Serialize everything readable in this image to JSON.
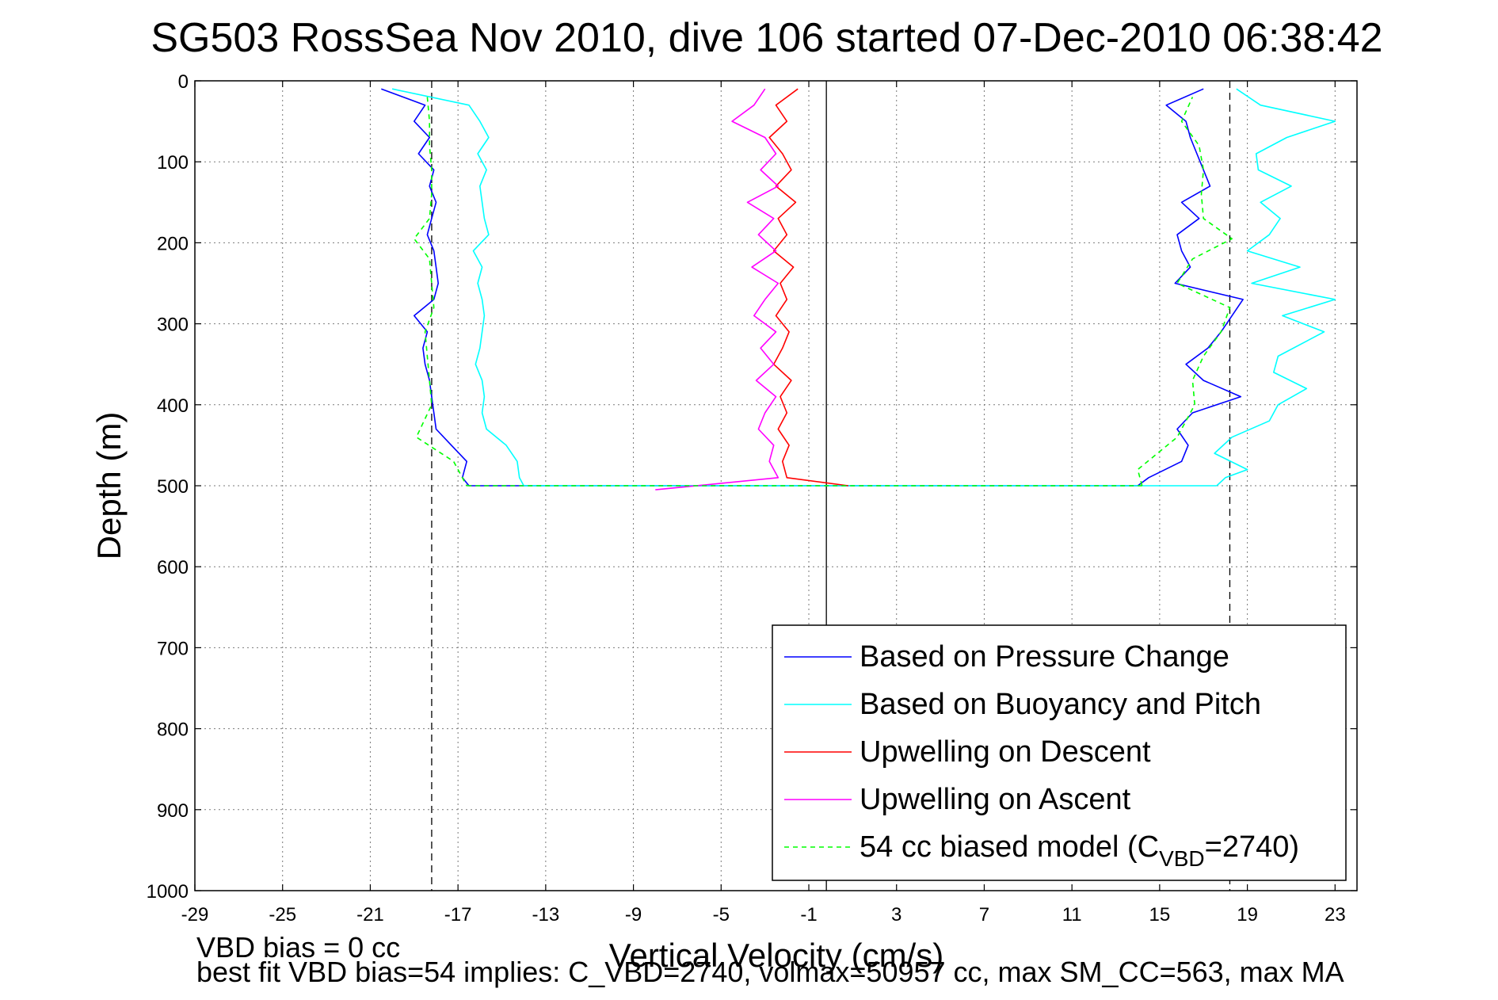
{
  "chart_data": {
    "type": "line",
    "title": "SG503 RossSea Nov 2010, dive 106 started 07-Dec-2010 06:38:42",
    "xlabel": "Vertical Velocity (cm/s)",
    "ylabel": "Depth (m)",
    "xlim": [
      -29,
      24
    ],
    "ylim": [
      1000,
      0
    ],
    "y_reversed": true,
    "grid": true,
    "x_ticks": [
      -29,
      -25,
      -21,
      -17,
      -13,
      -9,
      -5,
      -1,
      3,
      7,
      11,
      15,
      19,
      23
    ],
    "y_ticks": [
      0,
      100,
      200,
      300,
      400,
      500,
      600,
      700,
      800,
      900,
      1000
    ],
    "x_tick_labels": [
      "-29",
      "-25",
      "-21",
      "-17",
      "-13",
      "-9",
      "-5",
      "-1",
      "3",
      "7",
      "11",
      "15",
      "19",
      "23"
    ],
    "y_tick_labels": [
      "0",
      "100",
      "200",
      "300",
      "400",
      "500",
      "600",
      "700",
      "800",
      "900",
      "1000"
    ],
    "reference_lines": [
      {
        "x": -18.2,
        "style": "dashed",
        "color": "#000000"
      },
      {
        "x": -0.2,
        "style": "solid",
        "color": "#000000"
      },
      {
        "x": 18.2,
        "style": "dashed",
        "color": "#000000"
      }
    ],
    "legend_position": "lower-right",
    "series": [
      {
        "name": "Based on Pressure Change",
        "color": "#0000ff",
        "descent": {
          "depth": [
            10,
            30,
            50,
            70,
            90,
            110,
            130,
            150,
            170,
            190,
            210,
            230,
            250,
            270,
            290,
            310,
            330,
            350,
            370,
            390,
            410,
            430,
            450,
            470,
            490,
            500
          ],
          "velocity": [
            -20.5,
            -18.5,
            -19.0,
            -18.3,
            -18.8,
            -18.1,
            -18.3,
            -18.0,
            -18.2,
            -18.4,
            -18.1,
            -18.0,
            -17.9,
            -18.1,
            -19.0,
            -18.4,
            -18.6,
            -18.5,
            -18.3,
            -18.2,
            -18.1,
            -18.0,
            -17.3,
            -16.6,
            -16.8,
            -16.5
          ]
        },
        "ascent": {
          "depth": [
            500,
            490,
            470,
            450,
            430,
            410,
            390,
            370,
            350,
            330,
            310,
            290,
            270,
            250,
            230,
            210,
            190,
            170,
            150,
            130,
            110,
            90,
            70,
            50,
            30,
            10
          ],
          "velocity": [
            14.0,
            14.5,
            16.0,
            16.3,
            15.8,
            16.5,
            18.7,
            17.0,
            16.2,
            17.2,
            17.8,
            18.3,
            18.8,
            15.7,
            16.4,
            16.0,
            15.8,
            16.8,
            16.0,
            17.3,
            17.0,
            16.7,
            16.4,
            16.2,
            15.3,
            17.0
          ]
        }
      },
      {
        "name": "Based on Buoyancy and Pitch",
        "color": "#00ffff",
        "descent": {
          "depth": [
            10,
            30,
            50,
            70,
            90,
            110,
            130,
            150,
            170,
            190,
            210,
            230,
            250,
            270,
            290,
            310,
            330,
            350,
            370,
            390,
            410,
            430,
            450,
            470,
            490,
            500
          ],
          "velocity": [
            -20.0,
            -16.5,
            -16.0,
            -15.6,
            -16.1,
            -15.7,
            -16.0,
            -15.9,
            -15.8,
            -15.6,
            -16.3,
            -15.9,
            -16.1,
            -15.9,
            -15.8,
            -15.9,
            -16.0,
            -16.2,
            -15.9,
            -15.8,
            -15.9,
            -15.7,
            -14.8,
            -14.3,
            -14.2,
            -14.0
          ]
        },
        "ascent": {
          "depth": [
            500,
            490,
            480,
            460,
            440,
            420,
            400,
            380,
            360,
            340,
            310,
            290,
            270,
            250,
            230,
            210,
            190,
            170,
            150,
            130,
            110,
            90,
            70,
            50,
            30,
            10
          ],
          "velocity": [
            17.6,
            18.0,
            19.0,
            17.5,
            18.3,
            20.0,
            20.4,
            21.7,
            20.2,
            20.4,
            22.5,
            20.6,
            23.0,
            19.2,
            21.4,
            19.0,
            20.0,
            20.5,
            19.6,
            21.0,
            19.5,
            19.4,
            20.8,
            23.0,
            19.6,
            18.5
          ]
        }
      },
      {
        "name": "Upwelling on Descent",
        "color": "#ff0000",
        "depth": [
          10,
          30,
          50,
          70,
          90,
          110,
          130,
          150,
          170,
          190,
          210,
          230,
          250,
          270,
          290,
          310,
          330,
          350,
          370,
          390,
          410,
          430,
          450,
          470,
          490,
          500
        ],
        "velocity": [
          -1.5,
          -2.5,
          -2.0,
          -2.8,
          -2.2,
          -1.8,
          -2.5,
          -1.6,
          -2.4,
          -2.0,
          -2.6,
          -1.7,
          -2.3,
          -2.0,
          -2.5,
          -1.9,
          -2.2,
          -2.6,
          -1.8,
          -2.3,
          -2.0,
          -2.4,
          -1.9,
          -2.2,
          -2.0,
          0.8
        ]
      },
      {
        "name": "Upwelling on Ascent",
        "color": "#ff00ff",
        "depth": [
          10,
          30,
          50,
          70,
          90,
          110,
          130,
          150,
          170,
          190,
          210,
          230,
          250,
          270,
          290,
          310,
          330,
          350,
          370,
          390,
          410,
          430,
          450,
          470,
          490,
          505
        ],
        "velocity": [
          -3.0,
          -3.5,
          -4.5,
          -3.0,
          -2.5,
          -3.2,
          -2.4,
          -3.8,
          -2.6,
          -3.3,
          -2.5,
          -3.6,
          -2.4,
          -3.0,
          -3.5,
          -2.5,
          -3.2,
          -2.6,
          -3.4,
          -2.5,
          -3.0,
          -3.3,
          -2.6,
          -2.8,
          -2.4,
          -8.0
        ]
      },
      {
        "name": "54 cc biased model (C",
        "name_sub": "VBD",
        "name_suffix": "=2740)",
        "color": "#00ff00",
        "descent": {
          "depth": [
            20,
            50,
            80,
            110,
            140,
            170,
            195,
            220,
            250,
            280,
            310,
            340,
            370,
            400,
            440,
            470,
            500
          ],
          "velocity": [
            -18.4,
            -18.3,
            -18.3,
            -18.2,
            -18.2,
            -18.3,
            -19.0,
            -18.3,
            -18.2,
            -18.1,
            -18.5,
            -18.4,
            -18.3,
            -18.2,
            -18.9,
            -17.2,
            -16.6
          ]
        },
        "ascent": {
          "depth": [
            500,
            480,
            440,
            400,
            370,
            340,
            310,
            280,
            250,
            220,
            195,
            170,
            140,
            110,
            80,
            50,
            20
          ],
          "velocity": [
            14.2,
            14.0,
            15.8,
            16.6,
            16.5,
            17.0,
            17.8,
            18.2,
            15.8,
            16.5,
            18.3,
            17.0,
            16.9,
            17.0,
            16.8,
            16.0,
            16.5
          ]
        }
      }
    ]
  },
  "notes": {
    "vbd_bias": "VBD bias = 0 cc",
    "best_fit": "best fit VBD bias=54 implies: C_VBD=2740, volmax=50957 cc, max SM_CC=563, max MA"
  }
}
